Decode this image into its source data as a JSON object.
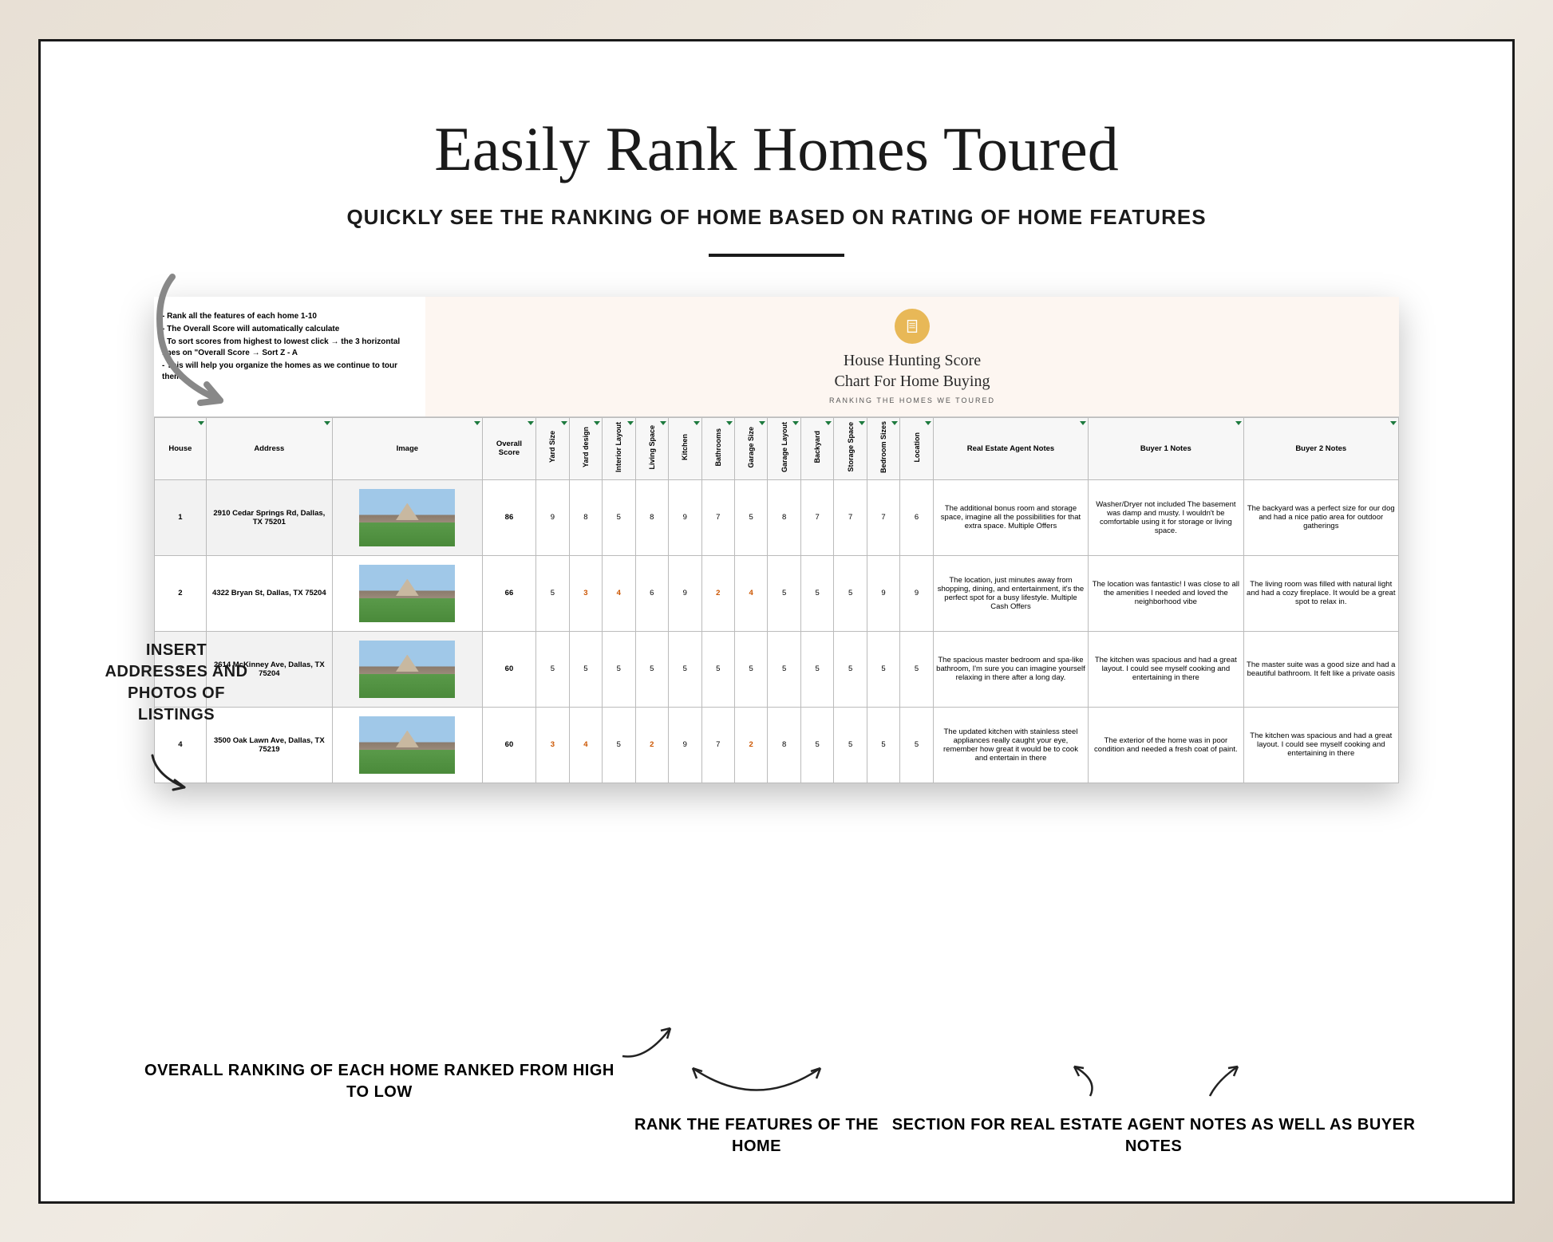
{
  "headline": "Easily Rank Homes Toured",
  "subheadline": "QUICKLY SEE THE RANKING OF HOME BASED ON RATING OF HOME FEATURES",
  "callouts": {
    "left": "INSERT ADDRESSES AND PHOTOS OF LISTINGS",
    "bottom1": "OVERALL RANKING OF EACH HOME RANKED FROM HIGH TO LOW",
    "bottom2": "RANK THE FEATURES OF THE HOME",
    "bottom3": "SECTION FOR REAL ESTATE AGENT NOTES AS WELL AS BUYER NOTES"
  },
  "spreadsheet": {
    "instructions": [
      "- Rank all the features of each home 1-10",
      "- The Overall Score will automatically calculate",
      "- To sort scores from highest to lowest click → the 3 horizontal lines on \"Overall Score → Sort Z - A",
      "- This will help you organize the homes as we continue to tour them"
    ],
    "title_line1": "House Hunting Score",
    "title_line2": "Chart For Home Buying",
    "subtitle": "RANKING THE HOMES WE TOURED",
    "columns": {
      "house": "House",
      "address": "Address",
      "image": "Image",
      "score": "Overall Score",
      "features": [
        "Yard Size",
        "Yard design",
        "Interior Layout",
        "Living Space",
        "Kitchen",
        "Bathrooms",
        "Garage Size",
        "Garage Layout",
        "Backyard",
        "Storage Space",
        "Bedroom Sizes",
        "Location"
      ],
      "agent_notes": "Real Estate Agent Notes",
      "buyer1": "Buyer 1 Notes",
      "buyer2": "Buyer 2 Notes"
    },
    "rows": [
      {
        "num": "1",
        "address": "2910 Cedar Springs Rd, Dallas, TX 75201",
        "score": "86",
        "features": [
          "9",
          "8",
          "5",
          "8",
          "9",
          "7",
          "5",
          "8",
          "7",
          "7",
          "7",
          "6"
        ],
        "low_idx": [],
        "agent": "The additional bonus room and storage space, imagine all the possibilities for that extra space. Multiple Offers",
        "buyer1": "Washer/Dryer not included The basement was damp and musty. I wouldn't be comfortable using it for storage or living space.",
        "buyer2": "The backyard was a perfect size for our dog and had a nice patio area for outdoor gatherings"
      },
      {
        "num": "2",
        "address": "4322 Bryan St, Dallas, TX 75204",
        "score": "66",
        "features": [
          "5",
          "3",
          "4",
          "6",
          "9",
          "2",
          "4",
          "5",
          "5",
          "5",
          "9",
          "9"
        ],
        "low_idx": [
          1,
          2,
          5,
          6
        ],
        "agent": "The location, just minutes away from shopping, dining, and entertainment, it's the perfect spot for a busy lifestyle. Multiple Cash Offers",
        "buyer1": "The location was fantastic! I was close to all the amenities I needed and loved the neighborhood vibe",
        "buyer2": "The living room was filled with natural light and had a cozy fireplace. It would be a great spot to relax in."
      },
      {
        "num": "3",
        "address": "2614 McKinney Ave, Dallas, TX 75204",
        "score": "60",
        "features": [
          "5",
          "5",
          "5",
          "5",
          "5",
          "5",
          "5",
          "5",
          "5",
          "5",
          "5",
          "5"
        ],
        "low_idx": [],
        "agent": "The spacious master bedroom and spa-like bathroom, I'm sure you can imagine yourself relaxing in there after a long day.",
        "buyer1": "The kitchen was spacious and had a great layout. I could see myself cooking and entertaining in there",
        "buyer2": "The master suite was a good size and had a beautiful bathroom. It felt like a private oasis"
      },
      {
        "num": "4",
        "address": "3500 Oak Lawn Ave, Dallas, TX 75219",
        "score": "60",
        "features": [
          "3",
          "4",
          "5",
          "2",
          "9",
          "7",
          "2",
          "8",
          "5",
          "5",
          "5",
          "5"
        ],
        "low_idx": [
          0,
          1,
          3,
          6
        ],
        "agent": "The updated kitchen with stainless steel appliances really caught your eye, remember how great it would be to cook and entertain in there",
        "buyer1": "The exterior of the home was in poor condition and needed a fresh coat of paint.",
        "buyer2": "The kitchen was spacious and had a great layout. I could see myself cooking and entertaining in there"
      }
    ]
  },
  "colors": {
    "accent": "#e8b857",
    "filter": "#1d7a3e",
    "low": "#cc5500",
    "header_bg": "#fdf6f1"
  }
}
